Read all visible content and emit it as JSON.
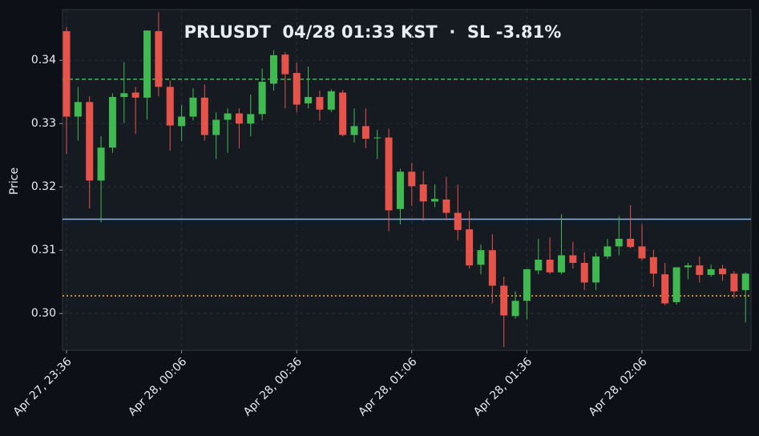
{
  "chart_data": {
    "type": "candlestick",
    "title": "PRLUSDT  04/28 01:33 KST  ·  SL -3.81%",
    "y_label": "Price",
    "categories": [
      "Apr 27, 23:36",
      null,
      null,
      null,
      null,
      null,
      null,
      null,
      null,
      null,
      "Apr 28, 00:06",
      null,
      null,
      null,
      null,
      null,
      null,
      null,
      null,
      null,
      "Apr 28, 00:36",
      null,
      null,
      null,
      null,
      null,
      null,
      null,
      null,
      null,
      "Apr 28, 01:06",
      null,
      null,
      null,
      null,
      null,
      null,
      null,
      null,
      null,
      "Apr 28, 01:36",
      null,
      null,
      null,
      null,
      null,
      null,
      null,
      null,
      null,
      "Apr 28, 02:06",
      null,
      null,
      null,
      null,
      null,
      null,
      null,
      null,
      null
    ],
    "open": [
      0.3446,
      0.3311,
      0.3334,
      0.321,
      0.3262,
      0.3342,
      0.3349,
      0.3341,
      0.3446,
      0.3358,
      0.3296,
      0.3311,
      0.3341,
      0.3282,
      0.3306,
      0.3316,
      0.33,
      0.3315,
      0.3363,
      0.3409,
      0.338,
      0.3332,
      0.3342,
      0.3322,
      0.3349,
      0.3282,
      0.3296,
      0.3277,
      0.3278,
      0.3165,
      0.3224,
      0.3204,
      0.3177,
      0.318,
      0.3159,
      0.3133,
      0.3077,
      0.31,
      0.3044,
      0.2996,
      0.302,
      0.3068,
      0.3085,
      0.3065,
      0.3092,
      0.308,
      0.3049,
      0.309,
      0.3106,
      0.3118,
      0.3106,
      0.3089,
      0.3062,
      0.3018,
      0.3073,
      0.3076,
      0.3061,
      0.3071,
      0.3063,
      0.3037
    ],
    "high": [
      0.3453,
      0.3358,
      0.3343,
      0.328,
      0.3348,
      0.3397,
      0.3358,
      0.3447,
      0.3476,
      0.3368,
      0.333,
      0.3356,
      0.3362,
      0.3318,
      0.3324,
      0.3324,
      0.3346,
      0.3387,
      0.3416,
      0.3413,
      0.3396,
      0.339,
      0.3352,
      0.3354,
      0.3353,
      0.3324,
      0.3324,
      0.329,
      0.3292,
      0.3229,
      0.3238,
      0.3225,
      0.3204,
      0.3216,
      0.3204,
      0.3162,
      0.3109,
      0.3125,
      0.3058,
      0.3035,
      0.307,
      0.3118,
      0.312,
      0.3157,
      0.3113,
      0.3097,
      0.3096,
      0.3118,
      0.3154,
      0.3171,
      0.3141,
      0.31,
      0.308,
      0.3073,
      0.308,
      0.309,
      0.3077,
      0.3077,
      0.3067,
      0.3065
    ],
    "low": [
      0.3252,
      0.3273,
      0.3166,
      0.3144,
      0.3254,
      0.3301,
      0.3284,
      0.3306,
      0.3343,
      0.3257,
      0.3272,
      0.3305,
      0.3273,
      0.3244,
      0.3254,
      0.3261,
      0.328,
      0.3305,
      0.3352,
      0.3324,
      0.3318,
      0.3324,
      0.3305,
      0.3318,
      0.328,
      0.327,
      0.3261,
      0.3244,
      0.313,
      0.3141,
      0.317,
      0.3146,
      0.3168,
      0.3147,
      0.3116,
      0.3071,
      0.3062,
      0.3016,
      0.2947,
      0.2992,
      0.2991,
      0.3062,
      0.3062,
      0.3062,
      0.3071,
      0.3037,
      0.3037,
      0.3086,
      0.3092,
      0.3103,
      0.3084,
      0.3042,
      0.3013,
      0.3014,
      0.3054,
      0.3049,
      0.3058,
      0.3052,
      0.3024,
      0.2986
    ],
    "close": [
      0.3311,
      0.3334,
      0.321,
      0.3262,
      0.3342,
      0.3348,
      0.3341,
      0.3447,
      0.3358,
      0.3297,
      0.3311,
      0.3341,
      0.3282,
      0.3306,
      0.3316,
      0.33,
      0.3315,
      0.3366,
      0.3408,
      0.3378,
      0.333,
      0.3342,
      0.3322,
      0.3351,
      0.3282,
      0.3296,
      0.3276,
      0.3278,
      0.3163,
      0.3224,
      0.3201,
      0.3177,
      0.3181,
      0.3159,
      0.3132,
      0.3076,
      0.31,
      0.3044,
      0.2997,
      0.302,
      0.307,
      0.3085,
      0.3065,
      0.3092,
      0.308,
      0.3049,
      0.309,
      0.3106,
      0.3118,
      0.3105,
      0.3087,
      0.3063,
      0.3016,
      0.3073,
      0.3076,
      0.3061,
      0.307,
      0.3062,
      0.3035,
      0.3063
    ],
    "up_color": "#3fb950",
    "down_color": "#e5534b",
    "hlines": [
      {
        "value": 0.337,
        "color": "#3fb950",
        "style": "dashed"
      },
      {
        "value": 0.3149,
        "color": "#79b8ff",
        "style": "solid"
      },
      {
        "value": 0.3028,
        "color": "#f0b050",
        "style": "dotted"
      }
    ],
    "ylim": [
      0.2942,
      0.348
    ],
    "yticks": [
      {
        "value": 0.3,
        "label": "0.30"
      },
      0.31,
      0.32,
      0.33,
      0.34
    ],
    "grid": true
  }
}
